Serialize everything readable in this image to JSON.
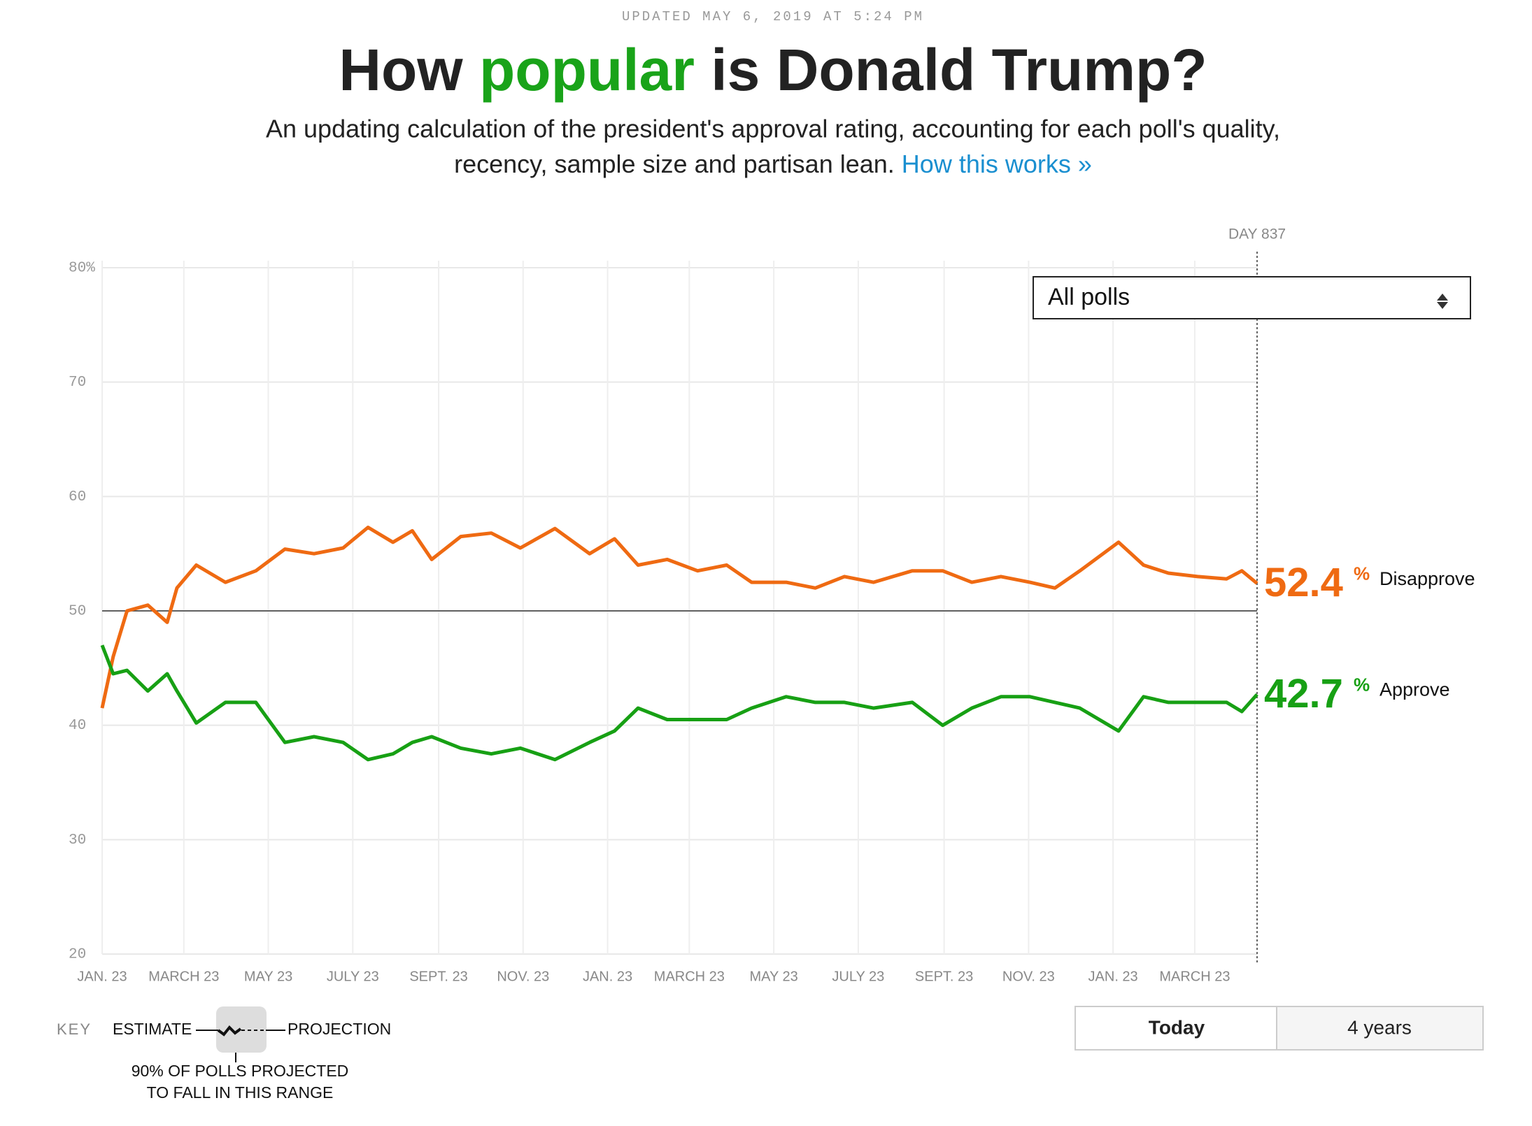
{
  "updated": "UPDATED MAY 6, 2019 AT 5:24 PM",
  "title": {
    "before": "How ",
    "highlight": "popular",
    "after": " is Donald Trump?"
  },
  "subtitle": {
    "line1": "An updating calculation of the president's approval rating, accounting for each poll's quality,",
    "line2": "recency, sample size and partisan lean. ",
    "link": "How this works »"
  },
  "dropdown": "All polls",
  "key": {
    "label": "KEY",
    "estimate": "ESTIMATE",
    "projection": "PROJECTION",
    "range_line1": "90% OF POLLS PROJECTED",
    "range_line2": "TO FALL IN THIS RANGE"
  },
  "buttons": [
    "Today",
    "4 years"
  ],
  "chart_data": {
    "type": "line",
    "x": [
      3,
      11,
      21,
      36,
      50,
      57,
      71,
      92,
      114,
      135,
      156,
      177,
      195,
      213,
      227,
      241,
      262,
      284,
      305,
      330,
      355,
      373,
      390,
      411,
      433,
      454,
      472,
      497,
      518,
      539,
      560,
      588,
      610,
      631,
      652,
      673,
      691,
      709,
      737,
      755,
      773,
      794,
      815,
      826,
      837
    ],
    "series": [
      {
        "name": "Disapprove",
        "color": "#ef6a12",
        "values": [
          41.5,
          46,
          50,
          50.5,
          49,
          52,
          54,
          52.5,
          53.5,
          55.4,
          55,
          55.5,
          57.3,
          56,
          57,
          54.5,
          56.5,
          56.8,
          55.5,
          57.2,
          55,
          56.3,
          54,
          54.5,
          53.5,
          54,
          52.5,
          52.5,
          52,
          53,
          52.5,
          53.5,
          53.5,
          52.5,
          53,
          52.5,
          52,
          53.5,
          56,
          54,
          53.3,
          53,
          52.8,
          53.5,
          52.4
        ]
      },
      {
        "name": "Approve",
        "color": "#17a014",
        "values": [
          47,
          44.5,
          44.8,
          43,
          44.5,
          43,
          40.2,
          42,
          42,
          38.5,
          39,
          38.5,
          37,
          37.5,
          38.5,
          39,
          38,
          37.5,
          38,
          37,
          38.5,
          39.5,
          41.5,
          40.5,
          40.5,
          40.5,
          41.5,
          42.5,
          42,
          42,
          41.5,
          42,
          40,
          41.5,
          42.5,
          42.5,
          42,
          41.5,
          39.5,
          42.5,
          42,
          42,
          42,
          41.2,
          42.7
        ]
      }
    ],
    "value_unit": "%",
    "xlim": [
      3,
      837
    ],
    "xticks": [
      {
        "value": 3,
        "label": "JAN. 23"
      },
      {
        "value": 62,
        "label": "MARCH 23"
      },
      {
        "value": 123,
        "label": "MAY 23"
      },
      {
        "value": 184,
        "label": "JULY 23"
      },
      {
        "value": 246,
        "label": "SEPT. 23"
      },
      {
        "value": 307,
        "label": "NOV. 23"
      },
      {
        "value": 368,
        "label": "JAN. 23"
      },
      {
        "value": 427,
        "label": "MARCH 23"
      },
      {
        "value": 488,
        "label": "MAY 23"
      },
      {
        "value": 549,
        "label": "JULY 23"
      },
      {
        "value": 611,
        "label": "SEPT. 23"
      },
      {
        "value": 672,
        "label": "NOV. 23"
      },
      {
        "value": 733,
        "label": "JAN. 23"
      },
      {
        "value": 792,
        "label": "MARCH 23"
      }
    ],
    "ylim": [
      20,
      80
    ],
    "yticks": [
      20,
      30,
      40,
      50,
      60,
      70,
      {
        "value": 80,
        "label": "80%"
      }
    ],
    "reference_y": 50,
    "marker": {
      "value": 837,
      "label": "DAY 837"
    },
    "grid": true
  }
}
